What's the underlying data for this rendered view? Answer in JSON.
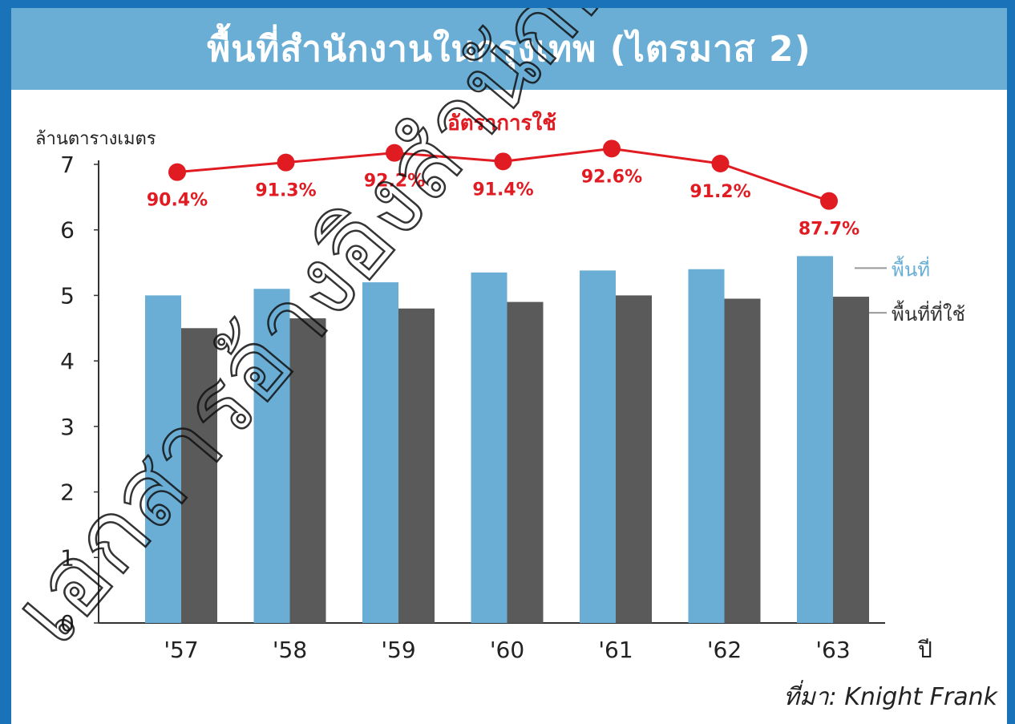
{
  "title": "พื้นที่สำนักงานในกรุงเทพ (ไตรมาส 2)",
  "source": "ที่มา: Knight Frank",
  "watermark": "เอกสารอ้างอิงสำนักพระปกเกล้า",
  "colors": {
    "frame": "#1a73b8",
    "title_bg": "#6aaed6",
    "supply": "#6aaed6",
    "occupied": "#5a5a5a",
    "rate": "#e01b22"
  },
  "chart_data": {
    "type": "bar",
    "ylabel": "ล้านตารางเมตร",
    "xlabel": "ปี",
    "ylim": [
      0,
      7
    ],
    "yticks": [
      0,
      1,
      2,
      3,
      4,
      5,
      6,
      7
    ],
    "categories": [
      "'57",
      "'58",
      "'59",
      "'60",
      "'61",
      "'62",
      "'63"
    ],
    "series": [
      {
        "name": "พื้นที่",
        "values": [
          5.0,
          5.1,
          5.2,
          5.35,
          5.38,
          5.4,
          5.6
        ]
      },
      {
        "name": "พื้นที่ที่ใช้",
        "values": [
          4.5,
          4.65,
          4.8,
          4.9,
          5.0,
          4.95,
          4.98
        ]
      }
    ],
    "line": {
      "name": "อัตราการใช้",
      "values": [
        90.4,
        91.3,
        92.2,
        91.4,
        92.6,
        91.2,
        87.7
      ],
      "labels": [
        "90.4%",
        "91.3%",
        "92.2%",
        "91.4%",
        "92.6%",
        "91.2%",
        "87.7%"
      ]
    }
  }
}
